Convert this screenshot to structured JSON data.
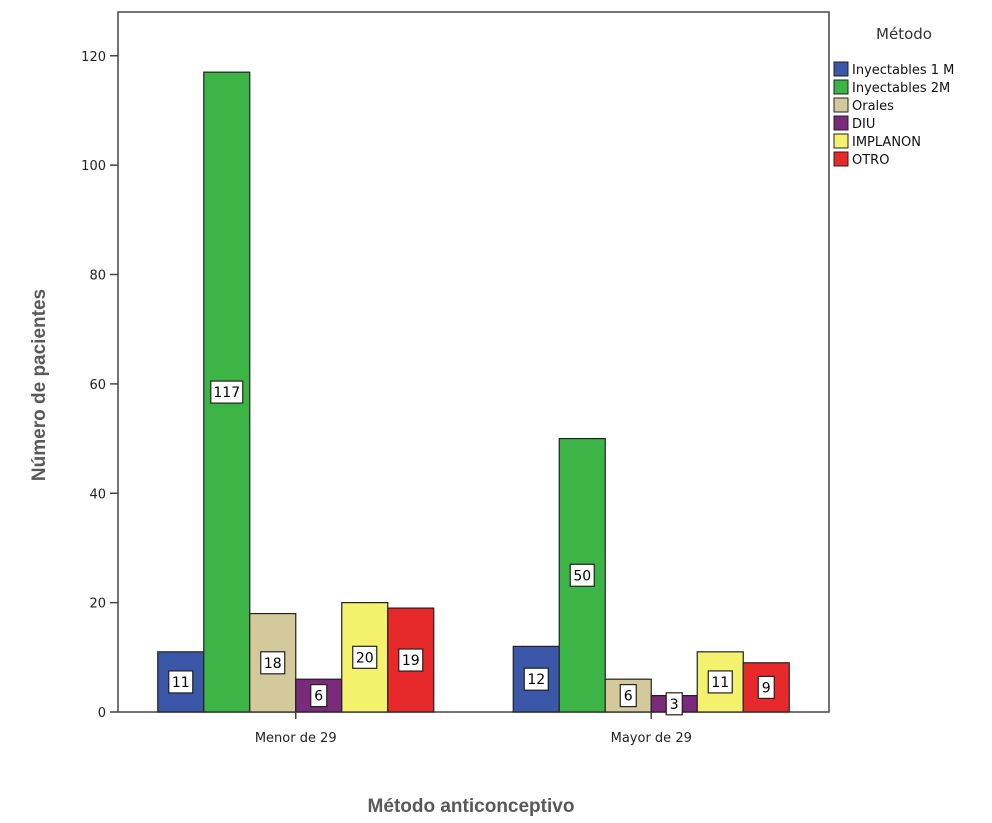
{
  "chart_data": {
    "type": "bar",
    "categories": [
      "Menor de 29",
      "Mayor de 29"
    ],
    "series": [
      {
        "name": "Inyectables 1 M",
        "values": [
          11,
          12
        ],
        "color": "#3a57a8"
      },
      {
        "name": "Inyectables 2M",
        "values": [
          117,
          50
        ],
        "color": "#3cb446"
      },
      {
        "name": "Orales",
        "values": [
          18,
          6
        ],
        "color": "#d4c99a"
      },
      {
        "name": "DIU",
        "values": [
          6,
          3
        ],
        "color": "#7a2a7a"
      },
      {
        "name": "IMPLANON",
        "values": [
          20,
          11
        ],
        "color": "#f4f26c"
      },
      {
        "name": "OTRO",
        "values": [
          19,
          9
        ],
        "color": "#e8292b"
      }
    ],
    "xlabel": "Método anticonceptivo",
    "ylabel": "Número de pacientes",
    "ylim": [
      0,
      128
    ],
    "yticks": [
      0,
      20,
      40,
      60,
      80,
      100,
      120
    ],
    "legend_title": "Método",
    "legend_position": "top-right",
    "grid": false
  }
}
